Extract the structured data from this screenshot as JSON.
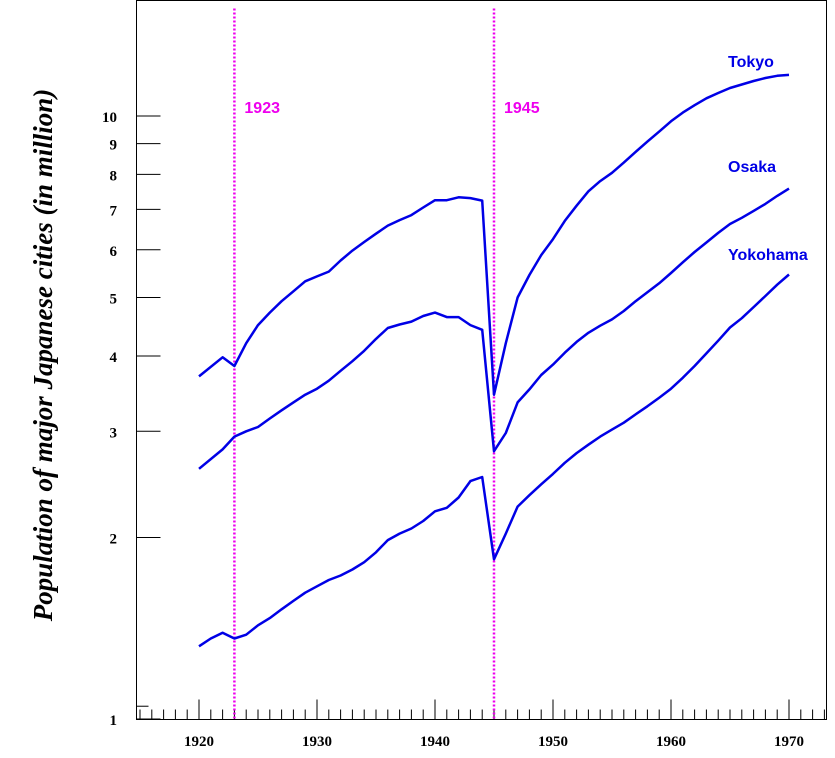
{
  "chart_data": {
    "type": "line",
    "title": "",
    "xlabel": "",
    "ylabel": "Population of major Japanese cities (in million)",
    "xlim": [
      1914.5,
      1973
    ],
    "ylim": [
      1,
      15
    ],
    "yscale": "log",
    "x_ticks": [
      "1920",
      "1930",
      "1940",
      "1950",
      "1960",
      "1970"
    ],
    "y_ticks": [
      "1",
      "2",
      "3",
      "4",
      "5",
      "6",
      "7",
      "8",
      "9",
      "10"
    ],
    "grid": false,
    "series": [
      {
        "name": "Tokyo",
        "color": "#0000e6",
        "x": [
          1920,
          1922,
          1923,
          1924,
          1925,
          1926,
          1927,
          1928,
          1929,
          1930,
          1931,
          1932,
          1933,
          1934,
          1935,
          1936,
          1937,
          1938,
          1939,
          1940,
          1941,
          1942,
          1943,
          1944,
          1945,
          1946,
          1947,
          1948,
          1949,
          1950,
          1951,
          1952,
          1953,
          1954,
          1955,
          1956,
          1957,
          1958,
          1959,
          1960,
          1961,
          1962,
          1963,
          1964,
          1965,
          1966,
          1967,
          1968,
          1969,
          1970
        ],
        "values": [
          3.7,
          3.98,
          3.85,
          4.2,
          4.5,
          4.72,
          4.93,
          5.12,
          5.32,
          5.42,
          5.52,
          5.76,
          5.98,
          6.18,
          6.38,
          6.58,
          6.72,
          6.85,
          7.05,
          7.25,
          7.25,
          7.33,
          7.31,
          7.24,
          3.45,
          4.2,
          5.0,
          5.45,
          5.88,
          6.25,
          6.7,
          7.1,
          7.5,
          7.8,
          8.05,
          8.37,
          8.72,
          9.07,
          9.42,
          9.8,
          10.13,
          10.42,
          10.7,
          10.92,
          11.13,
          11.28,
          11.43,
          11.56,
          11.66,
          11.7
        ]
      },
      {
        "name": "Osaka",
        "color": "#0000e6",
        "x": [
          1920,
          1922,
          1923,
          1924,
          1925,
          1926,
          1927,
          1928,
          1929,
          1930,
          1931,
          1932,
          1933,
          1934,
          1935,
          1936,
          1937,
          1938,
          1939,
          1940,
          1941,
          1942,
          1943,
          1944,
          1945,
          1946,
          1947,
          1948,
          1949,
          1950,
          1951,
          1952,
          1953,
          1954,
          1955,
          1956,
          1957,
          1958,
          1959,
          1960,
          1961,
          1962,
          1963,
          1964,
          1965,
          1966,
          1967,
          1968,
          1969,
          1970
        ],
        "values": [
          2.6,
          2.8,
          2.94,
          3.0,
          3.05,
          3.15,
          3.25,
          3.35,
          3.45,
          3.53,
          3.64,
          3.78,
          3.92,
          4.08,
          4.27,
          4.45,
          4.51,
          4.56,
          4.66,
          4.72,
          4.64,
          4.64,
          4.5,
          4.42,
          2.78,
          2.98,
          3.35,
          3.52,
          3.72,
          3.87,
          4.05,
          4.22,
          4.37,
          4.49,
          4.6,
          4.75,
          4.93,
          5.1,
          5.28,
          5.49,
          5.72,
          5.95,
          6.17,
          6.4,
          6.62,
          6.78,
          6.96,
          7.15,
          7.37,
          7.58
        ]
      },
      {
        "name": "Yokohama",
        "color": "#0000e6",
        "x": [
          1920,
          1921,
          1922,
          1923,
          1924,
          1925,
          1926,
          1927,
          1928,
          1929,
          1930,
          1931,
          1932,
          1933,
          1934,
          1935,
          1936,
          1937,
          1938,
          1939,
          1940,
          1941,
          1942,
          1943,
          1944,
          1945,
          1946,
          1947,
          1948,
          1949,
          1950,
          1951,
          1952,
          1953,
          1954,
          1955,
          1956,
          1957,
          1958,
          1959,
          1960,
          1961,
          1962,
          1963,
          1964,
          1965,
          1966,
          1967,
          1968,
          1969,
          1970
        ],
        "values": [
          1.32,
          1.36,
          1.39,
          1.36,
          1.38,
          1.43,
          1.47,
          1.52,
          1.57,
          1.62,
          1.66,
          1.7,
          1.73,
          1.77,
          1.82,
          1.89,
          1.98,
          2.03,
          2.07,
          2.13,
          2.21,
          2.24,
          2.33,
          2.48,
          2.52,
          1.84,
          2.03,
          2.25,
          2.35,
          2.45,
          2.55,
          2.66,
          2.76,
          2.85,
          2.94,
          3.02,
          3.1,
          3.2,
          3.3,
          3.41,
          3.53,
          3.68,
          3.85,
          4.04,
          4.24,
          4.46,
          4.62,
          4.82,
          5.03,
          5.25,
          5.46
        ]
      }
    ],
    "vertical_markers": [
      {
        "x": 1923,
        "label": "1923",
        "color": "#ee00ee"
      },
      {
        "x": 1945,
        "label": "1945",
        "color": "#ee00ee"
      }
    ]
  }
}
